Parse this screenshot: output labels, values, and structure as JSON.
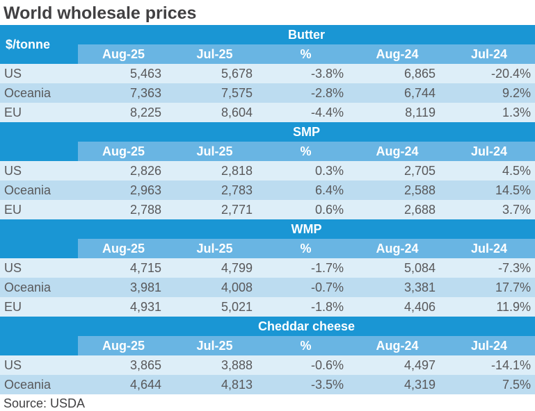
{
  "title": "World wholesale prices",
  "source": "Source: USDA",
  "colors": {
    "header_dark": "#1a96d4",
    "header_light": "#69b5e3",
    "row_light": "#ddeef8",
    "row_medium": "#bcdcf0",
    "text_dark": "#414042",
    "text_data": "#58585a",
    "header_text": "#ffffff"
  },
  "chart_data": {
    "type": "table",
    "title": "World wholesale prices",
    "unit_label": "$/tonne",
    "columns": [
      "Aug-25",
      "Jul-25",
      "%",
      "Aug-24",
      "Jul-24"
    ],
    "sections": [
      {
        "name": "Butter",
        "rows": [
          {
            "region": "US",
            "values": [
              "5,463",
              "5,678",
              "-3.8%",
              "6,865",
              "-20.4%"
            ]
          },
          {
            "region": "Oceania",
            "values": [
              "7,363",
              "7,575",
              "-2.8%",
              "6,744",
              "9.2%"
            ]
          },
          {
            "region": "EU",
            "values": [
              "8,225",
              "8,604",
              "-4.4%",
              "8,119",
              "1.3%"
            ]
          }
        ]
      },
      {
        "name": "SMP",
        "rows": [
          {
            "region": "US",
            "values": [
              "2,826",
              "2,818",
              "0.3%",
              "2,705",
              "4.5%"
            ]
          },
          {
            "region": "Oceania",
            "values": [
              "2,963",
              "2,783",
              "6.4%",
              "2,588",
              "14.5%"
            ]
          },
          {
            "region": "EU",
            "values": [
              "2,788",
              "2,771",
              "0.6%",
              "2,688",
              "3.7%"
            ]
          }
        ]
      },
      {
        "name": "WMP",
        "rows": [
          {
            "region": "US",
            "values": [
              "4,715",
              "4,799",
              "-1.7%",
              "5,084",
              "-7.3%"
            ]
          },
          {
            "region": "Oceania",
            "values": [
              "3,981",
              "4,008",
              "-0.7%",
              "3,381",
              "17.7%"
            ]
          },
          {
            "region": "EU",
            "values": [
              "4,931",
              "5,021",
              "-1.8%",
              "4,406",
              "11.9%"
            ]
          }
        ]
      },
      {
        "name": "Cheddar cheese",
        "rows": [
          {
            "region": "US",
            "values": [
              "3,865",
              "3,888",
              "-0.6%",
              "4,497",
              "-14.1%"
            ]
          },
          {
            "region": "Oceania",
            "values": [
              "4,644",
              "4,813",
              "-3.5%",
              "4,319",
              "7.5%"
            ]
          }
        ]
      }
    ],
    "source": "Source: USDA"
  }
}
